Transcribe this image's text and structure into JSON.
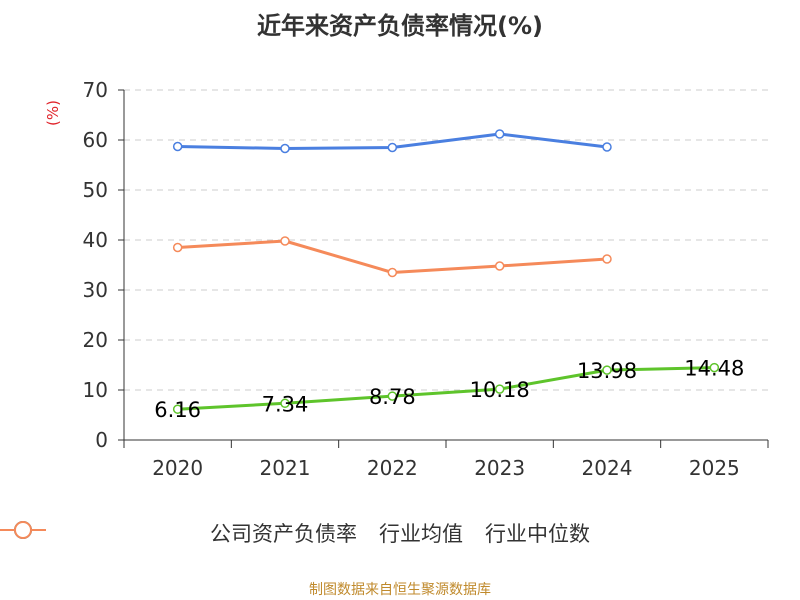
{
  "chart_data": {
    "type": "line",
    "title": "近年来资产负债率情况(%)",
    "ylabel": "(%)",
    "xlabel": "",
    "categories": [
      "2020",
      "2021",
      "2022",
      "2023",
      "2024",
      "2025"
    ],
    "ylim": [
      0,
      70
    ],
    "yticks": [
      0,
      10,
      20,
      30,
      40,
      50,
      60,
      70
    ],
    "grid": true,
    "legend_position": "bottom",
    "series": [
      {
        "name": "公司资产负债率",
        "color": "#5ec42b",
        "values": [
          6.16,
          7.34,
          8.78,
          10.18,
          13.98,
          14.48
        ],
        "labels": [
          "6.16",
          "7.34",
          "8.78",
          "10.18",
          "13.98",
          "14.48"
        ]
      },
      {
        "name": "行业均值",
        "color": "#4a7fe0",
        "values": [
          58.7,
          58.3,
          58.5,
          61.2,
          58.6,
          null
        ],
        "labels": []
      },
      {
        "name": "行业中位数",
        "color": "#f58a5a",
        "values": [
          38.5,
          39.8,
          33.5,
          34.8,
          36.2,
          null
        ],
        "labels": []
      }
    ]
  },
  "source": "制图数据来自恒生聚源数据库"
}
